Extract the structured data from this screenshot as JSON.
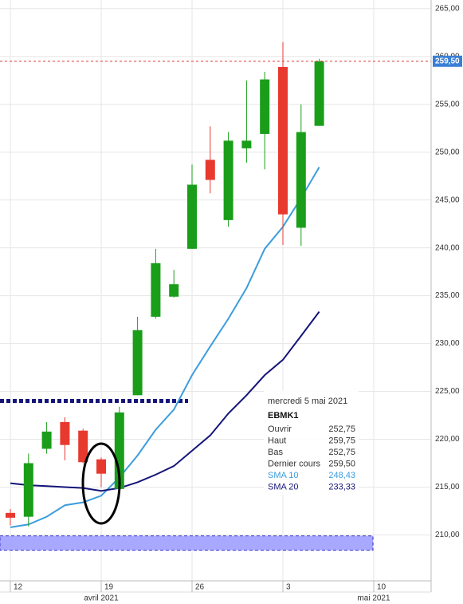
{
  "chart_data": {
    "type": "candlestick",
    "categories": [
      "12",
      null,
      null,
      null,
      null,
      "19",
      null,
      null,
      null,
      null,
      "26",
      null,
      null,
      null,
      null,
      "3",
      null,
      null,
      null,
      null,
      "10"
    ],
    "months": [
      null,
      null,
      null,
      null,
      null,
      "avril 2021",
      null,
      null,
      null,
      null,
      null,
      null,
      null,
      null,
      null,
      null,
      null,
      null,
      null,
      null,
      "mai 2021"
    ],
    "open": [
      212.3,
      211.9,
      219.0,
      221.8,
      220.9,
      217.9,
      214.8,
      224.6,
      232.8,
      234.9,
      239.9,
      249.2,
      242.9,
      250.4,
      251.9,
      258.9,
      242.1,
      252.75,
      null,
      null,
      null
    ],
    "high": [
      212.7,
      218.5,
      221.8,
      222.3,
      221.1,
      218.1,
      223.4,
      232.8,
      239.9,
      237.7,
      248.7,
      252.7,
      252.1,
      257.5,
      258.4,
      261.5,
      255.0,
      259.75,
      null,
      null,
      null
    ],
    "low": [
      211.0,
      210.9,
      218.5,
      217.8,
      217.5,
      215.0,
      214.8,
      224.6,
      232.6,
      234.8,
      239.9,
      245.7,
      242.2,
      248.9,
      248.2,
      240.3,
      240.2,
      252.75,
      null,
      null,
      null
    ],
    "close": [
      211.8,
      217.5,
      220.8,
      219.4,
      217.6,
      216.4,
      222.8,
      231.4,
      238.4,
      236.2,
      246.6,
      247.1,
      251.2,
      251.2,
      257.6,
      243.5,
      252.1,
      259.5,
      null,
      null,
      null
    ],
    "up_color": "#1a9e1a",
    "down_color": "#e8392f",
    "series": [
      {
        "name": "SMA 10",
        "color": "#3b9ddd",
        "values": [
          210.8,
          211.1,
          211.9,
          213.1,
          213.4,
          214.1,
          216.0,
          218.3,
          221.0,
          223.1,
          226.7,
          229.7,
          232.6,
          235.8,
          239.9,
          242.2,
          245.2,
          248.43,
          null,
          null,
          null
        ]
      },
      {
        "name": "SMA 20",
        "color": "#14147a",
        "values": [
          215.4,
          215.2,
          215.1,
          215.0,
          214.9,
          214.6,
          214.9,
          215.5,
          216.3,
          217.2,
          218.8,
          220.4,
          222.7,
          224.6,
          226.7,
          228.3,
          230.8,
          233.33,
          null,
          null,
          null
        ]
      }
    ],
    "ylim": [
      205.2,
      265.9
    ],
    "yticks": [
      {
        "value": 210,
        "label": "210,00"
      },
      {
        "value": 215,
        "label": "215,00"
      },
      {
        "value": 220,
        "label": "220,00"
      },
      {
        "value": 225,
        "label": "225,00"
      },
      {
        "value": 230,
        "label": "230,00"
      },
      {
        "value": 235,
        "label": "235,00"
      },
      {
        "value": 240,
        "label": "240,00"
      },
      {
        "value": 245,
        "label": "245,00"
      },
      {
        "value": 250,
        "label": "250,00"
      },
      {
        "value": 255,
        "label": "255,00"
      },
      {
        "value": 260,
        "label": "260,00"
      },
      {
        "value": 265,
        "label": "265,00"
      }
    ],
    "grid": true,
    "last_price": {
      "value": 259.5,
      "label": "259,50"
    },
    "resistance": 224.0,
    "support_band": [
      208.4,
      209.9
    ],
    "tooltip": {
      "date": "mercredi 5 mai 2021",
      "symbol": "EBMK1",
      "rows": [
        {
          "label": "Ouvrir",
          "value": "252,75"
        },
        {
          "label": "Haut",
          "value": "259,75"
        },
        {
          "label": "Bas",
          "value": "252,75"
        },
        {
          "label": "Dernier cours",
          "value": "259,50"
        }
      ],
      "sma_values": [
        "248,43",
        "233,33"
      ]
    }
  }
}
